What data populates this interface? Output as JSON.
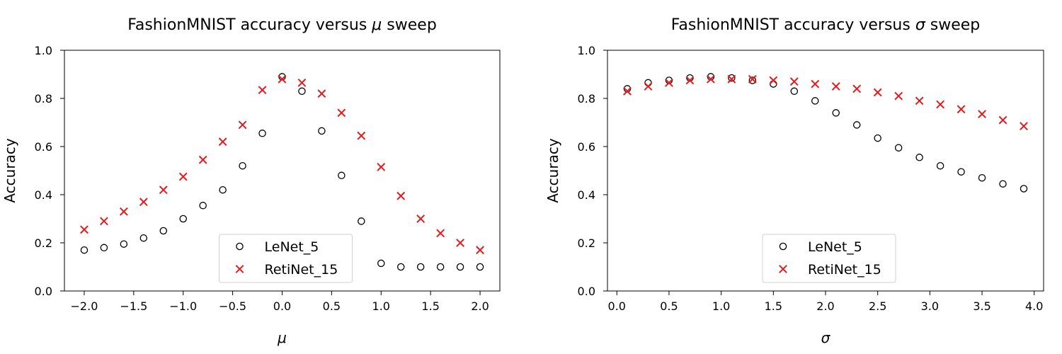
{
  "chart_data": [
    {
      "type": "scatter",
      "title_parts": [
        "FashionMNIST accuracy versus ",
        "μ",
        " sweep"
      ],
      "xlabel": "μ",
      "ylabel": "Accuracy",
      "xlim": [
        -2.2,
        2.2
      ],
      "ylim": [
        0.0,
        1.0
      ],
      "xticks": [
        -2.0,
        -1.5,
        -1.0,
        -0.5,
        0.0,
        0.5,
        1.0,
        1.5,
        2.0
      ],
      "xtick_labels": [
        "−2.0",
        "−1.5",
        "−1.0",
        "−0.5",
        "0.0",
        "0.5",
        "1.0",
        "1.5",
        "2.0"
      ],
      "yticks": [
        0.0,
        0.2,
        0.4,
        0.6,
        0.8,
        1.0
      ],
      "ytick_labels": [
        "0.0",
        "0.2",
        "0.4",
        "0.6",
        "0.8",
        "1.0"
      ],
      "legend_position": "bottom-center",
      "x": [
        -2.0,
        -1.8,
        -1.6,
        -1.4,
        -1.2,
        -1.0,
        -0.8,
        -0.6,
        -0.4,
        -0.2,
        0.0,
        0.2,
        0.4,
        0.6,
        0.8,
        1.0,
        1.2,
        1.4,
        1.6,
        1.8,
        2.0
      ],
      "series": [
        {
          "name": "LeNet_5",
          "marker": "circle",
          "color": "#000000",
          "values": [
            0.17,
            0.18,
            0.195,
            0.22,
            0.25,
            0.3,
            0.355,
            0.42,
            0.52,
            0.655,
            0.89,
            0.83,
            0.665,
            0.48,
            0.29,
            0.115,
            0.1,
            0.1,
            0.1,
            0.1,
            0.1
          ]
        },
        {
          "name": "RetiNet_15",
          "marker": "x",
          "color": "#e41a1c",
          "values": [
            0.255,
            0.29,
            0.33,
            0.37,
            0.42,
            0.475,
            0.545,
            0.62,
            0.69,
            0.835,
            0.88,
            0.865,
            0.82,
            0.74,
            0.645,
            0.515,
            0.395,
            0.3,
            0.24,
            0.2,
            0.17
          ]
        }
      ]
    },
    {
      "type": "scatter",
      "title_parts": [
        "FashionMNIST accuracy versus ",
        "σ",
        " sweep"
      ],
      "xlabel": "σ",
      "ylabel": "Accuracy",
      "xlim": [
        -0.09,
        4.09
      ],
      "ylim": [
        0.0,
        1.0
      ],
      "xticks": [
        0.0,
        0.5,
        1.0,
        1.5,
        2.0,
        2.5,
        3.0,
        3.5,
        4.0
      ],
      "xtick_labels": [
        "0.0",
        "0.5",
        "1.0",
        "1.5",
        "2.0",
        "2.5",
        "3.0",
        "3.5",
        "4.0"
      ],
      "yticks": [
        0.0,
        0.2,
        0.4,
        0.6,
        0.8,
        1.0
      ],
      "ytick_labels": [
        "0.0",
        "0.2",
        "0.4",
        "0.6",
        "0.8",
        "1.0"
      ],
      "legend_position": "bottom-center",
      "x": [
        0.1,
        0.3,
        0.5,
        0.7,
        0.9,
        1.1,
        1.3,
        1.5,
        1.7,
        1.9,
        2.1,
        2.3,
        2.5,
        2.7,
        2.9,
        3.1,
        3.3,
        3.5,
        3.7,
        3.9
      ],
      "series": [
        {
          "name": "LeNet_5",
          "marker": "circle",
          "color": "#000000",
          "values": [
            0.84,
            0.865,
            0.875,
            0.885,
            0.89,
            0.885,
            0.875,
            0.86,
            0.83,
            0.79,
            0.74,
            0.69,
            0.635,
            0.595,
            0.555,
            0.52,
            0.495,
            0.47,
            0.445,
            0.425
          ]
        },
        {
          "name": "RetiNet_15",
          "marker": "x",
          "color": "#e41a1c",
          "values": [
            0.83,
            0.85,
            0.865,
            0.875,
            0.88,
            0.88,
            0.88,
            0.875,
            0.87,
            0.86,
            0.85,
            0.84,
            0.825,
            0.81,
            0.79,
            0.775,
            0.755,
            0.735,
            0.71,
            0.685
          ]
        }
      ]
    }
  ]
}
